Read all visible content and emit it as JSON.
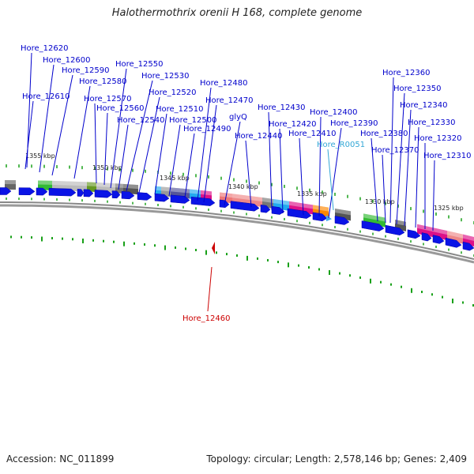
{
  "title": "Halothermothrix orenii H 168, complete genome",
  "footer": {
    "accession": "Accession: NC_011899",
    "topology": "Topology: circular; Length: 2,578,146 bp; Genes: 2,409"
  },
  "colors": {
    "gene_link": "#0000cc",
    "rna_link": "#33a7d6",
    "reverse_label": "#cc0000",
    "arrow": "#0a14e6",
    "backbone": "#888888",
    "tick": "#18a018"
  },
  "scale_ticks": [
    {
      "label": "1355 kbp"
    },
    {
      "label": "1350 kbp"
    },
    {
      "label": "1345 kbp"
    },
    {
      "label": "1340 kbp"
    },
    {
      "label": "1335 kbp"
    },
    {
      "label": "1330 kbp"
    },
    {
      "label": "1325 kbp"
    }
  ],
  "features": [
    {
      "name": "Hore_12620",
      "strand": "forward"
    },
    {
      "name": "Hore_12600",
      "strand": "forward"
    },
    {
      "name": "Hore_12590",
      "strand": "forward"
    },
    {
      "name": "Hore_12580",
      "strand": "forward"
    },
    {
      "name": "Hore_12610",
      "strand": "forward"
    },
    {
      "name": "Hore_12570",
      "strand": "forward"
    },
    {
      "name": "Hore_12560",
      "strand": "forward"
    },
    {
      "name": "Hore_12550",
      "strand": "forward"
    },
    {
      "name": "Hore_12530",
      "strand": "forward"
    },
    {
      "name": "Hore_12520",
      "strand": "forward"
    },
    {
      "name": "Hore_12540",
      "strand": "forward"
    },
    {
      "name": "Hore_12510",
      "strand": "forward"
    },
    {
      "name": "Hore_12500",
      "strand": "forward"
    },
    {
      "name": "Hore_12490",
      "strand": "forward"
    },
    {
      "name": "Hore_12480",
      "strand": "forward"
    },
    {
      "name": "Hore_12470",
      "strand": "forward"
    },
    {
      "name": "glyQ",
      "strand": "forward"
    },
    {
      "name": "Hore_12440",
      "strand": "forward"
    },
    {
      "name": "Hore_12430",
      "strand": "forward"
    },
    {
      "name": "Hore_12420",
      "strand": "forward"
    },
    {
      "name": "Hore_12410",
      "strand": "forward"
    },
    {
      "name": "Hore_12400",
      "strand": "forward"
    },
    {
      "name": "Hore_12390",
      "strand": "forward"
    },
    {
      "name": "Hore_R0051",
      "strand": "forward",
      "type": "rna"
    },
    {
      "name": "Hore_12380",
      "strand": "forward"
    },
    {
      "name": "Hore_12370",
      "strand": "forward"
    },
    {
      "name": "Hore_12360",
      "strand": "forward"
    },
    {
      "name": "Hore_12350",
      "strand": "forward"
    },
    {
      "name": "Hore_12340",
      "strand": "forward"
    },
    {
      "name": "Hore_12330",
      "strand": "forward"
    },
    {
      "name": "Hore_12320",
      "strand": "forward"
    },
    {
      "name": "Hore_12310",
      "strand": "forward"
    },
    {
      "name": "Hore_12460",
      "strand": "reverse"
    }
  ]
}
